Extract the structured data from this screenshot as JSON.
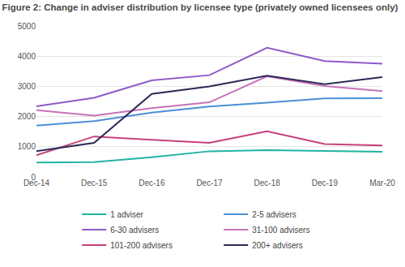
{
  "chart_data": {
    "type": "line",
    "title": "Figure 2: Change in adviser distribution by licensee type (privately owned licensees only)",
    "categories": [
      "Dec-14",
      "Dec-15",
      "Dec-16",
      "Dec-17",
      "Dec-18",
      "Dec-19",
      "Mar-20"
    ],
    "series": [
      {
        "name": "1 adviser",
        "color": "#21b3a3",
        "values": [
          480,
          490,
          650,
          850,
          890,
          860,
          830
        ]
      },
      {
        "name": "2-5 advisers",
        "color": "#4a8fd4",
        "values": [
          1700,
          1850,
          2130,
          2330,
          2460,
          2600,
          2610
        ]
      },
      {
        "name": "6-30 advisers",
        "color": "#8e5bc8",
        "values": [
          2340,
          2620,
          3200,
          3370,
          4280,
          3840,
          3750
        ]
      },
      {
        "name": "31-100 advisers",
        "color": "#c772b8",
        "values": [
          2210,
          2030,
          2280,
          2470,
          3330,
          3010,
          2840
        ]
      },
      {
        "name": "101-200 advisers",
        "color": "#c6417a",
        "values": [
          720,
          1340,
          1230,
          1130,
          1510,
          1090,
          1040
        ]
      },
      {
        "name": "200+ advisers",
        "color": "#2b2a55",
        "values": [
          850,
          1130,
          2750,
          3000,
          3350,
          3070,
          3310
        ]
      }
    ],
    "ylim": [
      0,
      5000
    ],
    "yticks": [
      0,
      1000,
      2000,
      3000,
      4000,
      5000
    ],
    "grid": true,
    "legend": "bottom"
  }
}
